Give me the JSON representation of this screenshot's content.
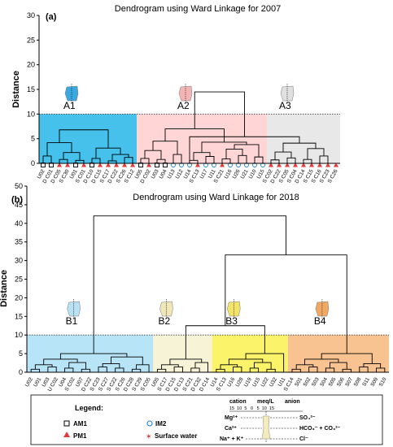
{
  "chart_data": [
    {
      "type": "dendrogram",
      "panel_label": "(a)",
      "title": "Dendrogram using Ward Linkage for 2007",
      "ylabel": "Distance",
      "ylim": [
        0,
        30
      ],
      "yticks": [
        0,
        5,
        10,
        15,
        20,
        25,
        30
      ],
      "cut_line": 10,
      "leaves": [
        "U02",
        "D C01",
        "D C05",
        "S C30",
        "U01",
        "S C01",
        "D C10",
        "D C15",
        "S C17",
        "D C22",
        "S C26",
        "S C12",
        "U05",
        "D C02",
        "U03",
        "U04",
        "U13",
        "U12",
        "U14",
        "S C13",
        "U17",
        "U11",
        "S C21",
        "U16",
        "U26",
        "U21",
        "U10",
        "U15",
        "S C02",
        "D C22",
        "S C05",
        "S C04",
        "D C14",
        "S C15",
        "S C16",
        "S C23",
        "S C26"
      ],
      "leaf_markers": [
        "square",
        "square",
        "triangle",
        "triangle",
        "square",
        "triangle",
        "square",
        "triangle",
        "triangle",
        "triangle",
        "triangle",
        "triangle",
        "square",
        "triangle",
        "square",
        "square",
        "circle",
        "circle",
        "circle",
        "triangle",
        "circle",
        "circle",
        "triangle",
        "circle",
        "circle",
        "circle",
        "circle",
        "circle",
        "triangle",
        "triangle",
        "triangle",
        "triangle",
        "triangle",
        "triangle",
        "triangle",
        "triangle",
        "triangle"
      ],
      "clusters": [
        {
          "name": "A1",
          "start": 0,
          "end": 11,
          "color": "#45c1ec",
          "icon_color": "#3aa8de"
        },
        {
          "name": "A2",
          "start": 12,
          "end": 27,
          "color": "#ffd5d5",
          "icon_color": "#f4b4b4"
        },
        {
          "name": "A3",
          "start": 28,
          "end": 36,
          "color": "#e8e8e8",
          "icon_color": "#e0e0e0"
        }
      ],
      "tree": [
        [
          [
            [
              [
                0,
                1,
                1.5
              ],
              [
                [
                  2,
                  3,
                  0.8
                ],
                [
                  4,
                  5,
                  0.6
                ],
                2.2
              ],
              4.2
            ],
            [
              [
                6,
                7,
                1.0
              ],
              [
                [
                  8,
                  9,
                  0.5
                ],
                [
                  10,
                  11,
                  1.2
                ],
                1.8
              ],
              3.1
            ],
            6.8
          ],
          8.5
        ],
        [
          [
            [
              [
                [
                  12,
                  13,
                  1.0
                ],
                [
                  14,
                  15,
                  0.8
                ],
                2.6
              ],
              [
                16,
                17,
                1.8
              ],
              4.5
            ],
            [
              [
                [
                  18,
                  19,
                  0.6
                ],
                [
                  20,
                  21,
                  1.4
                ],
                2.2
              ],
              [
                [
                  [
                    22,
                    23,
                    0.9
                  ],
                  [
                    24,
                    25,
                    1.6
                  ],
                  2.9
                ],
                [
                  26,
                  27,
                  1.3
                ],
                3.8
              ],
              4.3
            ],
            7.0
          ],
          [
            [
              [
                [
                  28,
                  29,
                  0.7
                ],
                [
                  30,
                  31,
                  1.1
                ],
                2.3
              ],
              [
                [
                  32,
                  33,
                  0.8
                ],
                [
                  34,
                  35,
                  1.5
                ],
                3.0
              ],
              4.1
            ],
            [
              36,
              0,
              0
            ],
            5.4
          ],
          14.5
        ],
        31
      ]
    },
    {
      "type": "dendrogram",
      "panel_label": "(b)",
      "title": "Dendrogram using Ward Linkage for 2018",
      "ylabel": "Distance",
      "ylim": [
        0,
        50
      ],
      "yticks": [
        0,
        5,
        10,
        15,
        20,
        25,
        30,
        35,
        40,
        45,
        50
      ],
      "cut_line": 10,
      "leaves": [
        "U02",
        "U01",
        "U03",
        "U C02",
        "U04",
        "S C02",
        "U07",
        "D C22",
        "S C23",
        "S C27",
        "S C22",
        "S C26",
        "D C28",
        "S C29",
        "S C05",
        "U05",
        "S C17",
        "D C15",
        "D C13",
        "S C21",
        "D C32",
        "D C14",
        "U14",
        "S C13",
        "U16",
        "U28",
        "U19",
        "U15",
        "U22",
        "U32",
        "U11",
        "S C14",
        "S01",
        "S02",
        "S03",
        "S04",
        "S05",
        "S06",
        "S07",
        "S08",
        "S11",
        "S09",
        "S10"
      ],
      "clusters": [
        {
          "name": "B1",
          "start": 0,
          "end": 14,
          "color": "#b7e4f6",
          "icon_color": "#b9e1f4"
        },
        {
          "name": "B2",
          "start": 15,
          "end": 21,
          "color": "#f6f3d6",
          "icon_color": "#efe7b8"
        },
        {
          "name": "B3",
          "start": 22,
          "end": 30,
          "color": "#fbf36a",
          "icon_color": "#f3e36a"
        },
        {
          "name": "B4",
          "start": 31,
          "end": 42,
          "color": "#f8c390",
          "icon_color": "#f2a865"
        }
      ]
    }
  ],
  "legend": {
    "title": "Legend:",
    "items": [
      {
        "marker": "square",
        "label": "AM1"
      },
      {
        "marker": "circle",
        "label": "IM2"
      },
      {
        "marker": "triangle",
        "label": "PM1"
      },
      {
        "marker": "star",
        "label": "Surface water"
      }
    ],
    "stiff": {
      "cation": "cation",
      "meq": "meq/L",
      "anion": "anion",
      "scale": "15  10  5   0   5  10  15",
      "rows": [
        {
          "left": "Mg²⁺",
          "right": "SO₄²⁻"
        },
        {
          "left": "Ca²⁺",
          "right": "HCO₃⁻ + CO₃²⁻"
        },
        {
          "left": "Na⁺ + K⁺",
          "right": "Cl⁻"
        }
      ]
    }
  },
  "colors": {
    "axis": "#000000",
    "triangle": "#e23b3b",
    "circle": "#1e7fd6",
    "star": "#d23a3a"
  }
}
